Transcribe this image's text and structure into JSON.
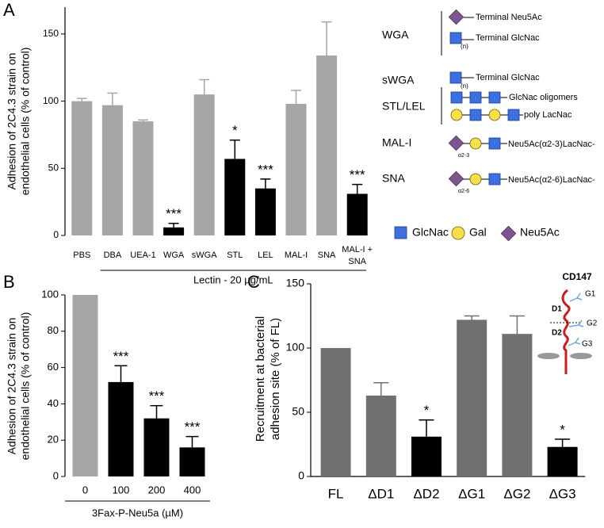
{
  "chart_data": [
    {
      "type": "bar",
      "panel": "A",
      "ylabel": [
        "Adhesion of 2C4.3 strain on",
        "endothelial cells (% of control)"
      ],
      "xlabel": "Lectin - 20 µg/mL",
      "categories": [
        "PBS",
        "DBA",
        "UEA-1",
        "WGA",
        "sWGA",
        "STL",
        "LEL",
        "MAL-I",
        "SNA",
        "MAL-I + SNA"
      ],
      "values": [
        100,
        97,
        85,
        6,
        105,
        57,
        35,
        98,
        134,
        31
      ],
      "errors": [
        2,
        9,
        1,
        3,
        11,
        14,
        7,
        10,
        25,
        7
      ],
      "colors": [
        "#a6a6a6",
        "#a6a6a6",
        "#a6a6a6",
        "#000000",
        "#a6a6a6",
        "#000000",
        "#000000",
        "#a6a6a6",
        "#a6a6a6",
        "#000000"
      ],
      "significance": [
        null,
        null,
        null,
        "***",
        null,
        "*",
        "***",
        null,
        null,
        "***"
      ],
      "ylim": [
        0,
        170
      ],
      "yticks": [
        0,
        50,
        100,
        150
      ]
    },
    {
      "type": "bar",
      "panel": "B",
      "ylabel": [
        "Adhesion of 2C4.3 strain on",
        "endothelial cells (% of control)"
      ],
      "xlabel": "3Fax-P-Neu5a (µM)",
      "categories": [
        "0",
        "100",
        "200",
        "400"
      ],
      "values": [
        100,
        52,
        32,
        16
      ],
      "errors": [
        0,
        9,
        7,
        6
      ],
      "colors": [
        "#a6a6a6",
        "#000000",
        "#000000",
        "#000000"
      ],
      "significance": [
        null,
        "***",
        "***",
        "***"
      ],
      "ylim": [
        0,
        100
      ],
      "yticks": [
        0,
        20,
        40,
        60,
        80,
        100
      ]
    },
    {
      "type": "bar",
      "panel": "C",
      "ylabel": [
        "Recruitment at bacterial",
        "adhesion site (% of FL)"
      ],
      "categories": [
        "FL",
        "ΔD1",
        "ΔD2",
        "ΔG1",
        "ΔG2",
        "ΔG3"
      ],
      "values": [
        100,
        63,
        31,
        122,
        111,
        23
      ],
      "errors": [
        0,
        10,
        13,
        3,
        14,
        6
      ],
      "colors": [
        "#707070",
        "#707070",
        "#000000",
        "#707070",
        "#707070",
        "#000000"
      ],
      "significance": [
        null,
        null,
        "*",
        null,
        null,
        "*"
      ],
      "ylim": [
        0,
        150
      ],
      "yticks": [
        0,
        50,
        100,
        150
      ]
    }
  ],
  "glycan_key": {
    "lectins": [
      "WGA",
      "sWGA",
      "STL/LEL",
      "MAL-I",
      "SNA"
    ],
    "wga_neu5ac": "Terminal Neu5Ac",
    "wga_glcnac": "Terminal GlcNac",
    "n": "(n)",
    "swga_glcnac": "Terminal GlcNac",
    "n2": "(n)",
    "oligomers": "GlcNac oligomers",
    "lacnac": "poly LacNac",
    "mal_link": "α2-3",
    "mal_text": "Neu5Ac(α2-3)LacNac-",
    "sna_link": "α2-6",
    "sna_text": "Neu5Ac(α2-6)LacNac-",
    "legend": [
      "GlcNac",
      "Gal",
      "Neu5Ac"
    ]
  },
  "cd147_diagram": {
    "title": "CD147",
    "labels": [
      "D1",
      "D2",
      "G1",
      "G2",
      "G3"
    ]
  }
}
